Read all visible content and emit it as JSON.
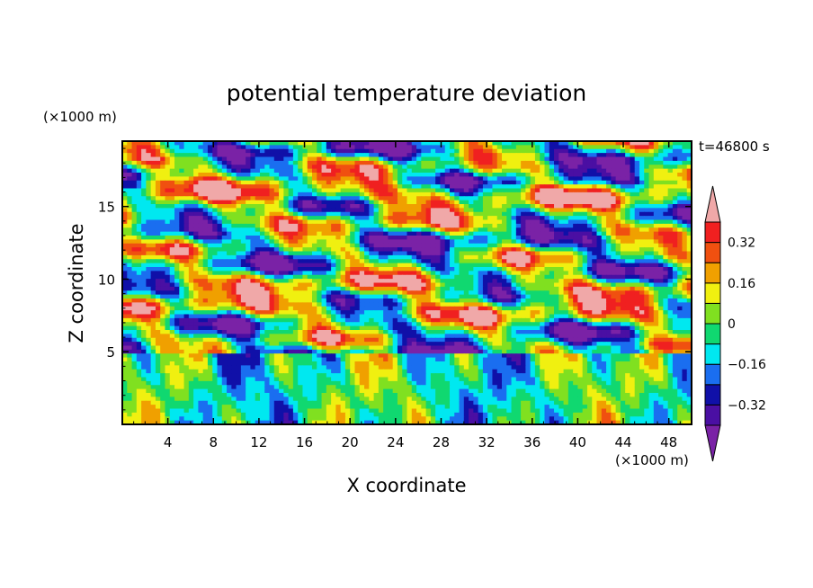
{
  "chart_data": {
    "type": "heatmap",
    "title": "potential temperature deviation",
    "xlabel": "X coordinate",
    "ylabel": "Z coordinate",
    "x_unit": "(×1000 m)",
    "y_unit": "(×1000 m)",
    "time_label": "t=46800 s",
    "xlim": [
      0,
      50
    ],
    "ylim": [
      0,
      19.5
    ],
    "x_ticks": [
      4,
      8,
      12,
      16,
      20,
      24,
      28,
      32,
      36,
      40,
      44,
      48
    ],
    "y_ticks": [
      5,
      10,
      15
    ],
    "colorbar": {
      "levels": [
        -0.4,
        -0.32,
        -0.24,
        -0.16,
        -0.08,
        0,
        0.08,
        0.16,
        0.24,
        0.32,
        0.4
      ],
      "tick_labels": [
        "0.32",
        "0.16",
        "0",
        "−0.16",
        "−0.32"
      ],
      "tick_values": [
        0.32,
        0.16,
        0,
        -0.16,
        -0.32
      ],
      "colors": [
        "#7a22a6",
        "#4a0fa3",
        "#1010a8",
        "#1a6ef0",
        "#00e8f0",
        "#10d870",
        "#80e020",
        "#f0f010",
        "#f0a000",
        "#f05010",
        "#f02020",
        "#f0a8a8"
      ],
      "extend": "both"
    }
  }
}
